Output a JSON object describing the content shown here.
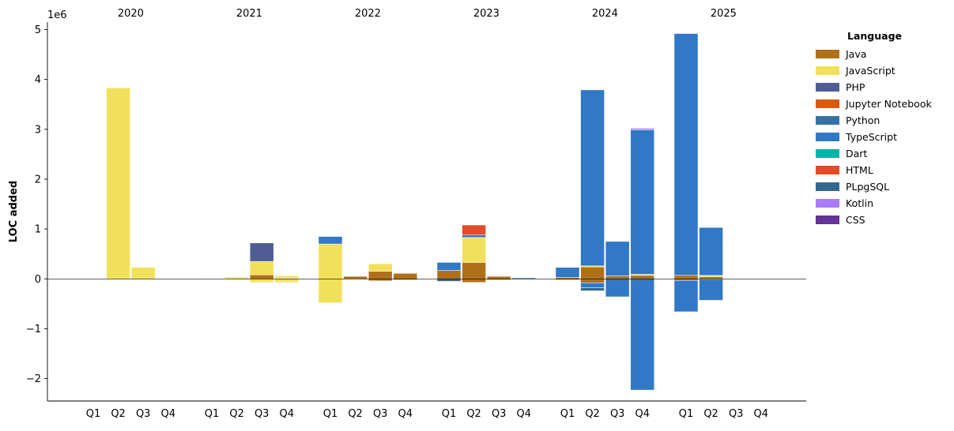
{
  "chart_data": {
    "type": "bar",
    "stacked": true,
    "ylabel": "LOC added",
    "y_offset_label": "1e6",
    "ylim": [
      -2.45,
      5.15
    ],
    "yticks": [
      -2,
      -1,
      0,
      1,
      2,
      3,
      4,
      5
    ],
    "ytick_labels": [
      "−2",
      "−1",
      "0",
      "1",
      "2",
      "3",
      "4",
      "5"
    ],
    "years": [
      "2020",
      "2021",
      "2022",
      "2023",
      "2024",
      "2025"
    ],
    "quarters": [
      "Q1",
      "Q2",
      "Q3",
      "Q4"
    ],
    "legend": {
      "title": "Language",
      "placement": "right",
      "items": [
        {
          "name": "Java",
          "color": "#b0701a"
        },
        {
          "name": "JavaScript",
          "color": "#f1e05a"
        },
        {
          "name": "PHP",
          "color": "#4f5d95"
        },
        {
          "name": "Jupyter Notebook",
          "color": "#da5b0b"
        },
        {
          "name": "Python",
          "color": "#3572a5"
        },
        {
          "name": "TypeScript",
          "color": "#3178c6"
        },
        {
          "name": "Dart",
          "color": "#00b4ab"
        },
        {
          "name": "HTML",
          "color": "#e34c26"
        },
        {
          "name": "PLpgSQL",
          "color": "#336791"
        },
        {
          "name": "Kotlin",
          "color": "#a97bff"
        },
        {
          "name": "CSS",
          "color": "#663399"
        }
      ]
    },
    "bars": [
      {
        "year": "2020",
        "quarter": "Q2",
        "segments": [
          {
            "lang": "JavaScript",
            "value": 3.83
          }
        ]
      },
      {
        "year": "2020",
        "quarter": "Q3",
        "segments": [
          {
            "lang": "JavaScript",
            "value": 0.23
          }
        ]
      },
      {
        "year": "2021",
        "quarter": "Q1",
        "segments": [
          {
            "lang": "Java",
            "value": 0.01
          },
          {
            "lang": "JavaScript",
            "value": 0.005
          }
        ]
      },
      {
        "year": "2021",
        "quarter": "Q2",
        "segments": [
          {
            "lang": "JavaScript",
            "value": 0.03
          },
          {
            "lang": "Dart",
            "value": 0.01
          },
          {
            "lang": "JavaScript",
            "value": -0.01
          }
        ]
      },
      {
        "year": "2021",
        "quarter": "Q3",
        "segments": [
          {
            "lang": "Java",
            "value": 0.08
          },
          {
            "lang": "JavaScript",
            "value": 0.27
          },
          {
            "lang": "PHP",
            "value": 0.37
          },
          {
            "lang": "JavaScript",
            "value": -0.07
          }
        ]
      },
      {
        "year": "2021",
        "quarter": "Q4",
        "segments": [
          {
            "lang": "Java",
            "value": 0.01
          },
          {
            "lang": "JavaScript",
            "value": 0.05
          },
          {
            "lang": "JavaScript",
            "value": -0.07
          }
        ]
      },
      {
        "year": "2022",
        "quarter": "Q1",
        "segments": [
          {
            "lang": "JavaScript",
            "value": 0.7
          },
          {
            "lang": "TypeScript",
            "value": 0.15
          },
          {
            "lang": "JavaScript",
            "value": -0.48
          }
        ]
      },
      {
        "year": "2022",
        "quarter": "Q2",
        "segments": [
          {
            "lang": "Java",
            "value": 0.05
          }
        ]
      },
      {
        "year": "2022",
        "quarter": "Q3",
        "segments": [
          {
            "lang": "Java",
            "value": 0.15
          },
          {
            "lang": "JavaScript",
            "value": 0.15
          },
          {
            "lang": "Java",
            "value": -0.04
          }
        ]
      },
      {
        "year": "2022",
        "quarter": "Q4",
        "segments": [
          {
            "lang": "Java",
            "value": 0.11
          },
          {
            "lang": "Java",
            "value": -0.02
          }
        ]
      },
      {
        "year": "2023",
        "quarter": "Q1",
        "segments": [
          {
            "lang": "Java",
            "value": 0.17
          },
          {
            "lang": "TypeScript",
            "value": 0.16
          },
          {
            "lang": "PLpgSQL",
            "value": -0.05
          }
        ]
      },
      {
        "year": "2023",
        "quarter": "Q2",
        "segments": [
          {
            "lang": "Java",
            "value": 0.33
          },
          {
            "lang": "JavaScript",
            "value": 0.5
          },
          {
            "lang": "TypeScript",
            "value": 0.05
          },
          {
            "lang": "HTML",
            "value": 0.2
          },
          {
            "lang": "Java",
            "value": -0.07
          }
        ]
      },
      {
        "year": "2023",
        "quarter": "Q3",
        "segments": [
          {
            "lang": "Java",
            "value": 0.05
          },
          {
            "lang": "Java",
            "value": -0.02
          }
        ]
      },
      {
        "year": "2023",
        "quarter": "Q4",
        "segments": [
          {
            "lang": "Python",
            "value": 0.02
          },
          {
            "lang": "Python",
            "value": -0.01
          }
        ]
      },
      {
        "year": "2024",
        "quarter": "Q1",
        "segments": [
          {
            "lang": "Java",
            "value": 0.03
          },
          {
            "lang": "TypeScript",
            "value": 0.2
          },
          {
            "lang": "Java",
            "value": -0.02
          }
        ]
      },
      {
        "year": "2024",
        "quarter": "Q2",
        "segments": [
          {
            "lang": "Java",
            "value": 0.24
          },
          {
            "lang": "JavaScript",
            "value": 0.02
          },
          {
            "lang": "TypeScript",
            "value": 3.53
          },
          {
            "lang": "Java",
            "value": -0.08
          },
          {
            "lang": "TypeScript",
            "value": -0.1
          },
          {
            "lang": "PLpgSQL",
            "value": -0.06
          }
        ]
      },
      {
        "year": "2024",
        "quarter": "Q3",
        "segments": [
          {
            "lang": "Java",
            "value": 0.06
          },
          {
            "lang": "TypeScript",
            "value": 0.69
          },
          {
            "lang": "TypeScript",
            "value": -0.36
          }
        ]
      },
      {
        "year": "2024",
        "quarter": "Q4",
        "segments": [
          {
            "lang": "Java",
            "value": 0.07
          },
          {
            "lang": "JavaScript",
            "value": 0.02
          },
          {
            "lang": "TypeScript",
            "value": 2.9
          },
          {
            "lang": "Kotlin",
            "value": 0.03
          },
          {
            "lang": "TypeScript",
            "value": -2.23
          }
        ]
      },
      {
        "year": "2025",
        "quarter": "Q1",
        "segments": [
          {
            "lang": "Java",
            "value": 0.07
          },
          {
            "lang": "TypeScript",
            "value": 4.85
          },
          {
            "lang": "Java",
            "value": -0.03
          },
          {
            "lang": "TypeScript",
            "value": -0.63
          }
        ]
      },
      {
        "year": "2025",
        "quarter": "Q2",
        "segments": [
          {
            "lang": "Java",
            "value": 0.04
          },
          {
            "lang": "JavaScript",
            "value": 0.03
          },
          {
            "lang": "TypeScript",
            "value": 0.96
          },
          {
            "lang": "Java",
            "value": -0.01
          },
          {
            "lang": "TypeScript",
            "value": -0.42
          }
        ]
      }
    ]
  }
}
